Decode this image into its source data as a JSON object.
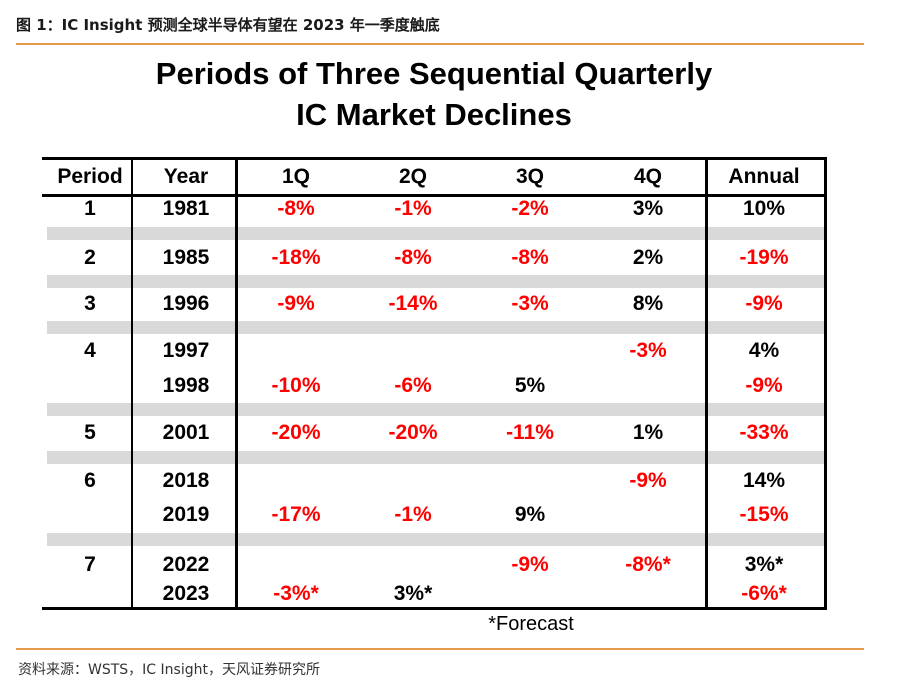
{
  "header": {
    "caption": "图 1：IC Insight 预测全球半导体有望在 2023 年一季度触底"
  },
  "table_title": {
    "line1": "Periods of Three Sequential Quarterly",
    "line2": "IC Market Declines"
  },
  "columns": [
    "Period",
    "Year",
    "1Q",
    "2Q",
    "3Q",
    "4Q",
    "Annual"
  ],
  "rows": [
    {
      "period": "1",
      "year": "1981",
      "q1": "-8%",
      "q2": "-1%",
      "q3": "-2%",
      "q4": "3%",
      "annual": "10%"
    },
    {
      "period": "2",
      "year": "1985",
      "q1": "-18%",
      "q2": "-8%",
      "q3": "-8%",
      "q4": "2%",
      "annual": "-19%"
    },
    {
      "period": "3",
      "year": "1996",
      "q1": "-9%",
      "q2": "-14%",
      "q3": "-3%",
      "q4": "8%",
      "annual": "-9%"
    },
    {
      "period": "4",
      "year": "1997",
      "q1": "",
      "q2": "",
      "q3": "",
      "q4": "-3%",
      "annual": "4%"
    },
    {
      "period": "",
      "year": "1998",
      "q1": "-10%",
      "q2": "-6%",
      "q3": "5%",
      "q4": "",
      "annual": "-9%"
    },
    {
      "period": "5",
      "year": "2001",
      "q1": "-20%",
      "q2": "-20%",
      "q3": "-11%",
      "q4": "1%",
      "annual": "-33%"
    },
    {
      "period": "6",
      "year": "2018",
      "q1": "",
      "q2": "",
      "q3": "",
      "q4": "-9%",
      "annual": "14%"
    },
    {
      "period": "",
      "year": "2019",
      "q1": "-17%",
      "q2": "-1%",
      "q3": "9%",
      "q4": "",
      "annual": "-15%"
    },
    {
      "period": "7",
      "year": "2022",
      "q1": "",
      "q2": "",
      "q3": "-9%",
      "q4": "-8%*",
      "annual": "3%*"
    },
    {
      "period": "",
      "year": "2023",
      "q1": "-3%*",
      "q2": "3%*",
      "q3": "",
      "q4": "",
      "annual": "-6%*"
    }
  ],
  "footnote": "*Forecast",
  "source": "资料来源：WSTS，IC Insight，天风证券研究所",
  "colors": {
    "negative": "#ff0000",
    "positive": "#000000",
    "stripe": "#d9d9d9",
    "accent": "#e39a4a"
  }
}
